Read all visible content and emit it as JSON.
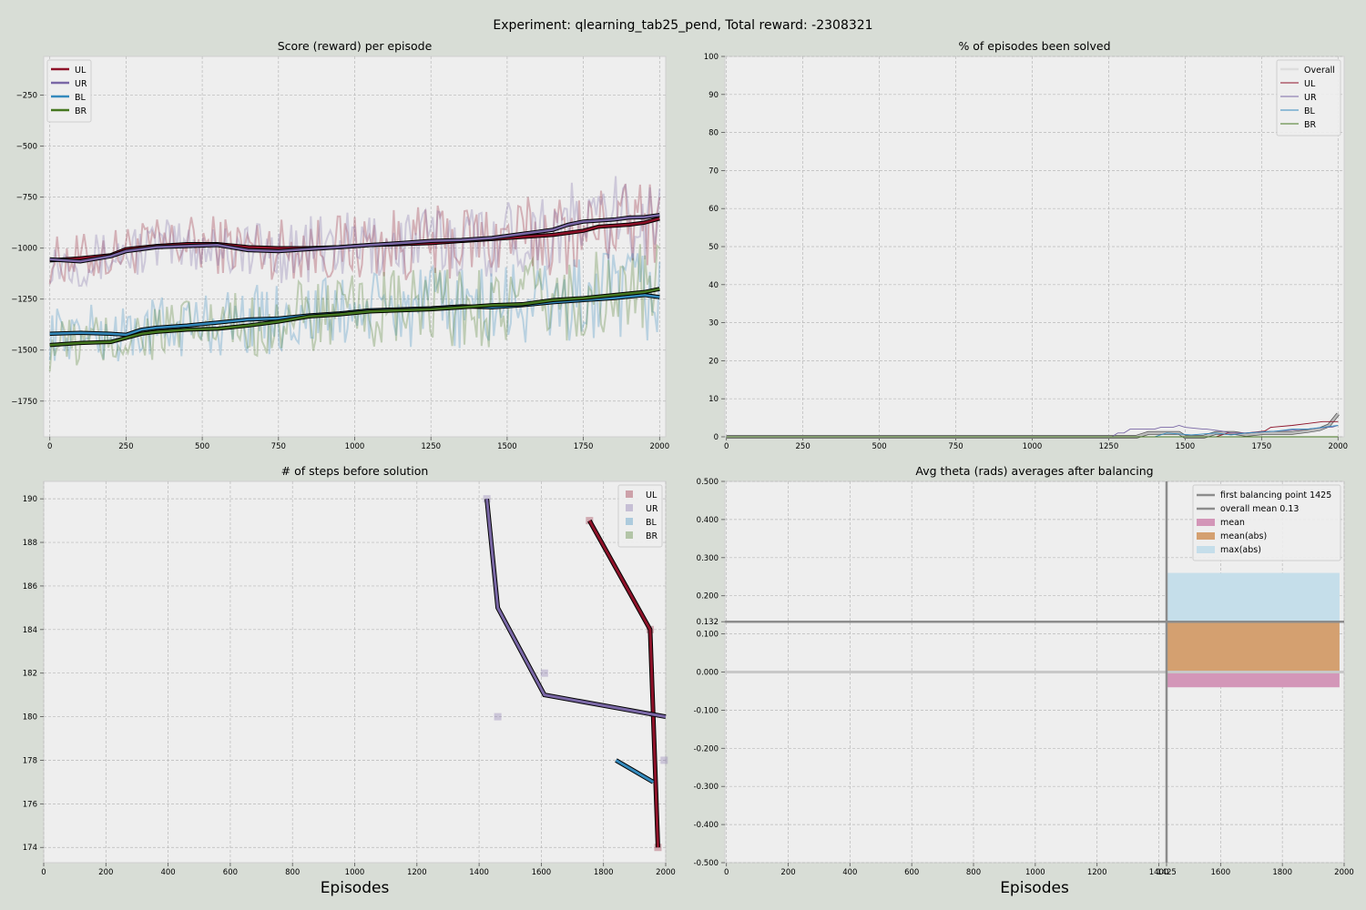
{
  "figure": {
    "suptitle": "Experiment: qlearning_tab25_pend, Total reward: -2308321",
    "colors": {
      "UL": "#8e1229",
      "UR": "#7a68a6",
      "BL": "#348abd",
      "BR": "#467821",
      "Overall": "#bcbcbc",
      "grey": "#8c8c8c"
    }
  },
  "chart_data": [
    {
      "id": "score",
      "type": "line",
      "title": "Score (reward) per episode",
      "xlabel": "",
      "ylabel": "",
      "xlim": [
        -20,
        2020
      ],
      "ylim": [
        -1925,
        -60
      ],
      "xticks": [
        0,
        250,
        500,
        750,
        1000,
        1250,
        1500,
        1750,
        2000
      ],
      "yticks": [
        -1750,
        -1500,
        -1250,
        -1000,
        -750,
        -500,
        -250
      ],
      "grid": true,
      "legend": "top-left",
      "legend_entries": [
        "UL",
        "UR",
        "BL",
        "BR"
      ],
      "series": [
        {
          "name": "UL",
          "smoothed": {
            "x": [
              0,
              100,
              200,
              250,
              350,
              450,
              550,
              650,
              750,
              850,
              950,
              1050,
              1150,
              1250,
              1350,
              1450,
              1550,
              1600,
              1650,
              1700,
              1750,
              1800,
              1850,
              1900,
              1950,
              2000
            ],
            "y": [
              -1060,
              -1050,
              -1035,
              -1005,
              -990,
              -980,
              -980,
              -995,
              -1000,
              -1000,
              -995,
              -985,
              -980,
              -975,
              -965,
              -955,
              -945,
              -940,
              -935,
              -925,
              -915,
              -895,
              -890,
              -885,
              -875,
              -855
            ]
          }
        },
        {
          "name": "UR",
          "smoothed": {
            "x": [
              0,
              100,
              200,
              250,
              350,
              450,
              550,
              650,
              750,
              850,
              950,
              1050,
              1150,
              1250,
              1350,
              1450,
              1550,
              1600,
              1650,
              1700,
              1750,
              1800,
              1850,
              1900,
              1950,
              2000
            ],
            "y": [
              -1055,
              -1065,
              -1040,
              -1015,
              -995,
              -990,
              -985,
              -1010,
              -1015,
              -1005,
              -995,
              -985,
              -975,
              -965,
              -960,
              -950,
              -930,
              -920,
              -910,
              -885,
              -870,
              -865,
              -860,
              -850,
              -848,
              -838
            ]
          }
        },
        {
          "name": "BL",
          "smoothed": {
            "x": [
              0,
              100,
              200,
              250,
              300,
              350,
              450,
              550,
              650,
              750,
              850,
              950,
              1050,
              1150,
              1250,
              1350,
              1450,
              1550,
              1650,
              1750,
              1850,
              1950,
              2000
            ],
            "y": [
              -1420,
              -1415,
              -1420,
              -1425,
              -1400,
              -1390,
              -1380,
              -1365,
              -1350,
              -1345,
              -1330,
              -1320,
              -1305,
              -1300,
              -1295,
              -1285,
              -1290,
              -1280,
              -1265,
              -1255,
              -1245,
              -1230,
              -1240
            ]
          }
        },
        {
          "name": "BR",
          "smoothed": {
            "x": [
              0,
              100,
              200,
              250,
              300,
              350,
              450,
              550,
              650,
              750,
              850,
              950,
              1050,
              1150,
              1250,
              1350,
              1450,
              1550,
              1650,
              1750,
              1850,
              1950,
              2000
            ],
            "y": [
              -1475,
              -1465,
              -1460,
              -1440,
              -1420,
              -1410,
              -1400,
              -1395,
              -1380,
              -1360,
              -1335,
              -1325,
              -1310,
              -1305,
              -1300,
              -1290,
              -1280,
              -1275,
              -1255,
              -1245,
              -1230,
              -1215,
              -1200
            ]
          }
        }
      ]
    },
    {
      "id": "solved",
      "type": "line",
      "title": "% of episodes been solved",
      "xlabel": "",
      "ylabel": "",
      "xlim": [
        -5,
        2020
      ],
      "ylim": [
        0,
        100
      ],
      "xticks": [
        0,
        250,
        500,
        750,
        1000,
        1250,
        1500,
        1750,
        2000
      ],
      "yticks": [
        0,
        10,
        20,
        30,
        40,
        50,
        60,
        70,
        80,
        90,
        100
      ],
      "grid": true,
      "legend": "top-right",
      "legend_entries": [
        "Overall",
        "UL",
        "UR",
        "BL",
        "BR"
      ],
      "series": [
        {
          "name": "Overall",
          "x": [
            0,
            1250,
            1260,
            1300,
            1340,
            1380,
            1420,
            1450,
            1480,
            1500,
            1560,
            1600,
            1660,
            1700,
            1760,
            1800,
            1850,
            1900,
            1940,
            1970,
            1990,
            2000
          ],
          "y": [
            0,
            0,
            0,
            0,
            0,
            1,
            1,
            1,
            1,
            0,
            0,
            1,
            1,
            0.5,
            1,
            1,
            1,
            1.5,
            2,
            3,
            5,
            6
          ]
        },
        {
          "name": "UL",
          "x": [
            0,
            1600,
            1640,
            1700,
            1760,
            1780,
            1850,
            1900,
            1950,
            2000
          ],
          "y": [
            0,
            0,
            1,
            1,
            1.5,
            2.5,
            3,
            3.5,
            4,
            4
          ]
        },
        {
          "name": "UR",
          "x": [
            0,
            1260,
            1280,
            1300,
            1320,
            1380,
            1400,
            1420,
            1460,
            1480,
            1500,
            1560,
            1570,
            1620,
            1650,
            1700,
            1800,
            1900,
            1960,
            1980,
            2000
          ],
          "y": [
            0,
            0,
            1,
            1,
            2,
            2,
            2,
            2.5,
            2.5,
            3,
            2.5,
            2,
            2,
            1.5,
            1,
            1,
            1.5,
            2,
            2.5,
            2.5,
            3
          ]
        },
        {
          "name": "BL",
          "x": [
            0,
            1400,
            1440,
            1520,
            1600,
            1650,
            1700,
            1800,
            1850,
            1900,
            1950,
            2000
          ],
          "y": [
            0,
            0,
            1,
            0.5,
            1,
            0.5,
            1,
            1.5,
            2,
            2,
            2.5,
            3
          ]
        },
        {
          "name": "BR",
          "x": [
            0,
            2000
          ],
          "y": [
            0,
            0
          ]
        }
      ]
    },
    {
      "id": "steps",
      "type": "line",
      "title": "# of steps before solution",
      "xlabel": "Episodes",
      "ylabel": "",
      "xlim": [
        0,
        2000
      ],
      "ylim": [
        173.3,
        190.8
      ],
      "xticks": [
        0,
        200,
        400,
        600,
        800,
        1000,
        1200,
        1400,
        1600,
        1800,
        2000
      ],
      "yticks": [
        174,
        176,
        178,
        180,
        182,
        184,
        186,
        188,
        190
      ],
      "grid": true,
      "legend": "top-right",
      "legend_entries": [
        "UL",
        "UR",
        "BL",
        "BR"
      ],
      "series": [
        {
          "name": "UL",
          "x": [
            1755,
            1950,
            1975
          ],
          "y": [
            189,
            184,
            174
          ],
          "points": {
            "x": [
              1755,
              1950,
              1975
            ],
            "y": [
              189,
              184,
              174
            ]
          }
        },
        {
          "name": "UR",
          "x": [
            1425,
            1460,
            1610,
            2000
          ],
          "y": [
            190,
            185,
            181,
            180
          ],
          "points": {
            "x": [
              1425,
              1460,
              1610,
              1995
            ],
            "y": [
              190,
              180,
              182,
              178
            ]
          }
        },
        {
          "name": "BL",
          "x": [
            1840,
            1960
          ],
          "y": [
            178,
            177
          ],
          "points": {
            "x": [],
            "y": []
          }
        },
        {
          "name": "BR",
          "x": [],
          "y": [],
          "points": {
            "x": [],
            "y": []
          }
        }
      ]
    },
    {
      "id": "theta",
      "type": "bar",
      "title": "Avg theta (rads) averages after balancing",
      "xlabel": "Episodes",
      "ylabel": "",
      "xlim": [
        -5,
        2000
      ],
      "ylim": [
        -0.5,
        0.5
      ],
      "xticks": [
        0,
        200,
        400,
        600,
        800,
        1000,
        1200,
        1400,
        1425,
        1600,
        1800,
        2000
      ],
      "xticklabels": [
        "0",
        "200",
        "400",
        "600",
        "800",
        "1000",
        "1200",
        "1400",
        "1425",
        "1600",
        "1800",
        "2000"
      ],
      "yticks": [
        -0.5,
        -0.4,
        -0.3,
        -0.2,
        -0.1,
        0.0,
        0.1,
        0.132,
        0.2,
        0.3,
        0.4,
        0.5
      ],
      "yticklabels": [
        "-0.500",
        "-0.400",
        "-0.300",
        "-0.200",
        "-0.100",
        "0.000",
        "0.100",
        "0.132",
        "0.200",
        "0.300",
        "0.400",
        "0.500"
      ],
      "grid": true,
      "legend": "top-right",
      "legend_entries": [
        "first balancing point 1425",
        "overall mean 0.13",
        "mean",
        "mean(abs)",
        "max(abs)"
      ],
      "first_balancing_point": 1425,
      "overall_mean": 0.132,
      "bar_span": [
        1425,
        1985
      ],
      "bars": [
        {
          "name": "max(abs)",
          "value": 0.26,
          "color": "#c5deea"
        },
        {
          "name": "mean(abs)",
          "value": 0.132,
          "color": "#d4a070"
        },
        {
          "name": "mean",
          "value": -0.04,
          "color": "#d396b8"
        }
      ]
    }
  ]
}
